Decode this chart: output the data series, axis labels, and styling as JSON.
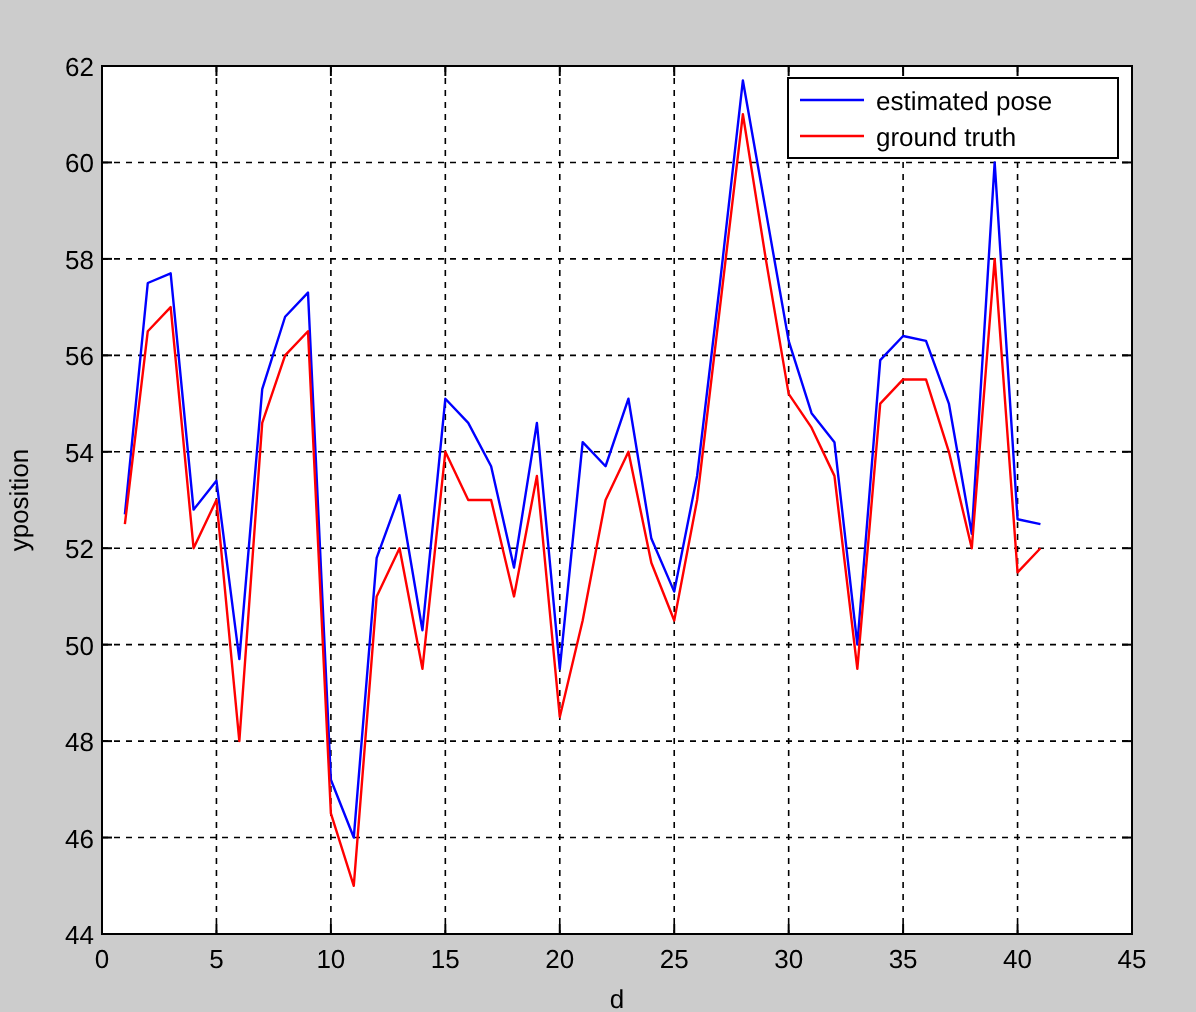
{
  "chart_data": {
    "type": "line",
    "xlabel": "d",
    "ylabel": "yposition",
    "x": [
      1,
      2,
      3,
      4,
      5,
      6,
      7,
      8,
      9,
      10,
      11,
      12,
      13,
      14,
      15,
      16,
      17,
      18,
      19,
      20,
      21,
      22,
      23,
      24,
      25,
      26,
      27,
      28,
      29,
      30,
      31,
      32,
      33,
      34,
      35,
      36,
      37,
      38,
      39,
      40,
      41
    ],
    "series": [
      {
        "name": "estimated pose",
        "color": "#0000ff",
        "values": [
          52.7,
          57.5,
          57.7,
          52.8,
          53.4,
          49.7,
          55.3,
          56.8,
          57.3,
          47.2,
          46.0,
          51.8,
          53.1,
          50.3,
          55.1,
          54.6,
          53.7,
          51.6,
          54.6,
          49.5,
          54.2,
          53.7,
          55.1,
          52.2,
          51.1,
          53.5,
          57.5,
          61.7,
          59.0,
          56.3,
          54.8,
          54.2,
          50.0,
          55.9,
          56.4,
          56.3,
          55.0,
          52.3,
          60.0,
          52.6,
          52.5
        ]
      },
      {
        "name": "ground truth",
        "color": "#ff0000",
        "values": [
          52.5,
          56.5,
          57.0,
          52.0,
          53.0,
          48.0,
          54.6,
          56.0,
          56.5,
          46.5,
          45.0,
          51.0,
          52.0,
          49.5,
          54.0,
          53.0,
          53.0,
          51.0,
          53.5,
          48.5,
          50.5,
          53.0,
          54.0,
          51.7,
          50.5,
          53.0,
          57.0,
          61.0,
          58.0,
          55.2,
          54.5,
          53.5,
          49.5,
          55.0,
          55.5,
          55.5,
          54.0,
          52.0,
          58.0,
          51.5,
          52.0
        ]
      }
    ],
    "xlim": [
      0,
      45
    ],
    "xticks": [
      0,
      5,
      10,
      15,
      20,
      25,
      30,
      35,
      40,
      45
    ],
    "ylim": [
      44,
      62
    ],
    "yticks": [
      44,
      46,
      48,
      50,
      52,
      54,
      56,
      58,
      60,
      62
    ],
    "grid": true,
    "legend": "top right",
    "marker": "none",
    "line_style": "solid"
  }
}
